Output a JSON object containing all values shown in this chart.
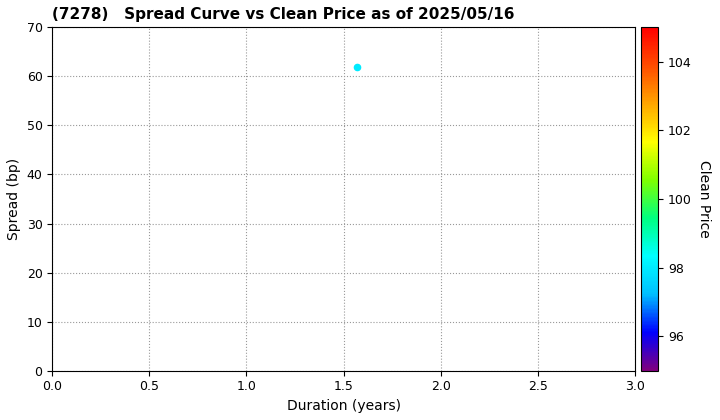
{
  "title": "(7278)   Spread Curve vs Clean Price as of 2025/05/16",
  "xlabel": "Duration (years)",
  "ylabel": "Spread (bp)",
  "colorbar_label": "Clean Price",
  "xlim": [
    0.0,
    3.0
  ],
  "ylim": [
    0,
    70
  ],
  "xticks": [
    0.0,
    0.5,
    1.0,
    1.5,
    2.0,
    2.5,
    3.0
  ],
  "yticks": [
    0,
    10,
    20,
    30,
    40,
    50,
    60,
    70
  ],
  "colorbar_min": 95,
  "colorbar_max": 105,
  "colorbar_ticks": [
    96,
    98,
    100,
    102,
    104
  ],
  "point_x": 1.57,
  "point_y": 62,
  "point_clean_price": 98.0,
  "background_color": "#ffffff",
  "grid_color": "#999999",
  "title_fontsize": 11,
  "label_fontsize": 10,
  "tick_fontsize": 9,
  "cbar_tick_fontsize": 9,
  "cbar_label_fontsize": 10
}
